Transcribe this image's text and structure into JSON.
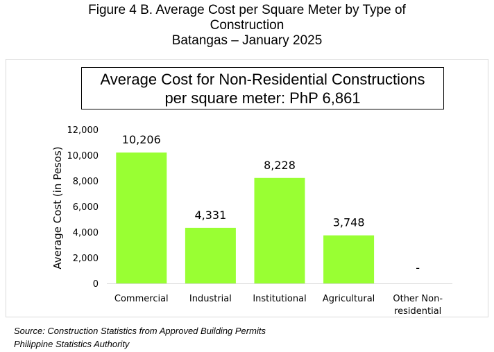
{
  "figure": {
    "title_line1": "Figure 4 B. Average Cost per Square Meter by Type of",
    "title_line2": "Construction",
    "title_line3": "Batangas – January 2025"
  },
  "callout": {
    "line1": "Average Cost for Non-Residential Constructions",
    "line2": "per square meter: PhP 6,861"
  },
  "chart_data": {
    "type": "bar",
    "categories": [
      [
        "Commercial"
      ],
      [
        "Industrial"
      ],
      [
        "Institutional"
      ],
      [
        "Agricultural"
      ],
      [
        "Other Non-",
        "residential"
      ]
    ],
    "values": [
      10206,
      4331,
      8228,
      3748,
      null
    ],
    "data_labels": [
      "10,206",
      "4,331",
      "8,228",
      "3,748",
      "-"
    ],
    "ylabel": "Average Cost (in Pesos)",
    "ylim": [
      0,
      12000
    ],
    "yticks": [
      0,
      2000,
      4000,
      6000,
      8000,
      10000,
      12000
    ],
    "ytick_labels": [
      "0",
      "2,000",
      "4,000",
      "6,000",
      "8,000",
      "10,000",
      "12,000"
    ],
    "grid": false,
    "bar_color": "#99FF33"
  },
  "source": {
    "line1": "Source: Construction Statistics from Approved Building Permits",
    "line2": "Philippine Statistics Authority"
  }
}
